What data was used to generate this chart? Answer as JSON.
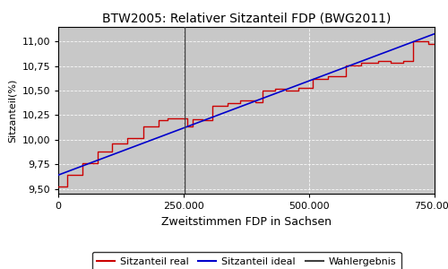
{
  "title": "BTW2005: Relativer Sitzanteil FDP (BWG2011)",
  "xlabel": "Zweitstimmen FDP in Sachsen",
  "ylabel": "Sitzanteil(%)",
  "bg_color": "#c8c8c8",
  "fig_bg_color": "#ffffff",
  "xlim": [
    0,
    750000
  ],
  "ylim": [
    9.45,
    11.15
  ],
  "yticks": [
    9.5,
    9.75,
    10.0,
    10.25,
    10.5,
    10.75,
    11.0
  ],
  "xticks": [
    0,
    250000,
    500000,
    750000
  ],
  "wahlergebnis_x": 252000,
  "ideal_start_y": 9.64,
  "ideal_end_y": 11.08,
  "real_steps": [
    [
      0,
      9.52
    ],
    [
      18000,
      9.52
    ],
    [
      18000,
      9.64
    ],
    [
      48000,
      9.64
    ],
    [
      48000,
      9.76
    ],
    [
      78000,
      9.76
    ],
    [
      78000,
      9.88
    ],
    [
      108000,
      9.88
    ],
    [
      108000,
      9.96
    ],
    [
      138000,
      9.96
    ],
    [
      138000,
      10.02
    ],
    [
      170000,
      10.02
    ],
    [
      170000,
      10.14
    ],
    [
      200000,
      10.14
    ],
    [
      200000,
      10.2
    ],
    [
      218000,
      10.2
    ],
    [
      218000,
      10.22
    ],
    [
      238000,
      10.22
    ],
    [
      238000,
      10.22
    ],
    [
      258000,
      10.22
    ],
    [
      258000,
      10.14
    ],
    [
      268000,
      10.14
    ],
    [
      268000,
      10.21
    ],
    [
      288000,
      10.21
    ],
    [
      288000,
      10.2
    ],
    [
      308000,
      10.2
    ],
    [
      308000,
      10.35
    ],
    [
      338000,
      10.35
    ],
    [
      338000,
      10.37
    ],
    [
      363000,
      10.37
    ],
    [
      363000,
      10.4
    ],
    [
      393000,
      10.4
    ],
    [
      393000,
      10.38
    ],
    [
      408000,
      10.38
    ],
    [
      408000,
      10.5
    ],
    [
      433000,
      10.5
    ],
    [
      433000,
      10.52
    ],
    [
      453000,
      10.52
    ],
    [
      453000,
      10.5
    ],
    [
      478000,
      10.5
    ],
    [
      478000,
      10.53
    ],
    [
      508000,
      10.53
    ],
    [
      508000,
      10.62
    ],
    [
      538000,
      10.62
    ],
    [
      538000,
      10.65
    ],
    [
      573000,
      10.65
    ],
    [
      573000,
      10.76
    ],
    [
      603000,
      10.76
    ],
    [
      603000,
      10.78
    ],
    [
      638000,
      10.78
    ],
    [
      638000,
      10.8
    ],
    [
      663000,
      10.8
    ],
    [
      663000,
      10.78
    ],
    [
      688000,
      10.78
    ],
    [
      688000,
      10.8
    ],
    [
      708000,
      10.8
    ],
    [
      708000,
      11.0
    ],
    [
      738000,
      11.0
    ],
    [
      738000,
      10.98
    ],
    [
      750000,
      10.98
    ]
  ],
  "line_colors": {
    "real": "#cc0000",
    "ideal": "#0000cc",
    "wahlergebnis": "#404040"
  },
  "legend_labels": [
    "Sitzanteil real",
    "Sitzanteil ideal",
    "Wahlergebnis"
  ]
}
